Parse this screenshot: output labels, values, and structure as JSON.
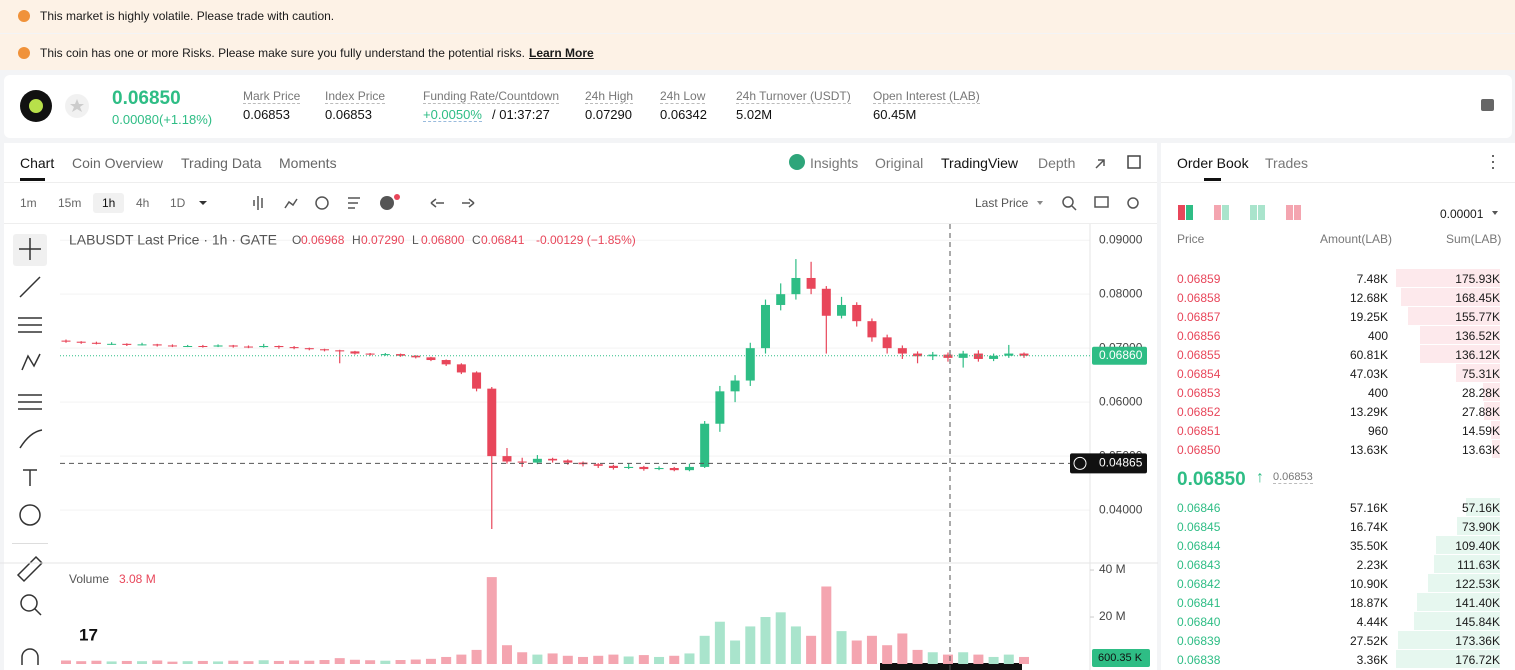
{
  "banners": [
    "This market is highly volatile. Please trade with caution.",
    "This coin has one or more Risks. Please make sure you fully understand the potential risks."
  ],
  "banner_link": "Learn More",
  "ticker": {
    "price": "0.06850",
    "change": "0.00080(+1.18%)",
    "stats": [
      {
        "label": "Mark Price",
        "value": "0.06853"
      },
      {
        "label": "Index Price",
        "value": "0.06853"
      },
      {
        "label": "Funding Rate/Countdown",
        "value": "+0.0050%",
        "value2": "/ 01:37:27"
      },
      {
        "label": "24h High",
        "value": "0.07290"
      },
      {
        "label": "24h Low",
        "value": "0.06342"
      },
      {
        "label": "24h Turnover (USDT)",
        "value": "5.02M"
      },
      {
        "label": "Open Interest (LAB)",
        "value": "60.45M"
      }
    ]
  },
  "tabs": [
    "Chart",
    "Coin Overview",
    "Trading Data",
    "Moments"
  ],
  "view_tabs": [
    "Insights",
    "Original",
    "TradingView",
    "Depth"
  ],
  "intervals": [
    "1m",
    "15m",
    "1h",
    "4h",
    "1D"
  ],
  "price_type": "Last Price",
  "chart_data": {
    "type": "candlestick",
    "title": "LABUSDT Last Price · 1h · GATE",
    "ohlc_legend": [
      {
        "label": "O",
        "value": "0.06968"
      },
      {
        "label": "H",
        "value": "0.07290"
      },
      {
        "label": "L",
        "value": "0.06800"
      },
      {
        "label": "C",
        "value": "0.06841"
      }
    ],
    "legend_change": "-0.00129 (−1.85%)",
    "open": [
      0.0714,
      0.0712,
      0.071,
      0.0708,
      0.0708,
      0.0706,
      0.0707,
      0.0705,
      0.0704,
      0.0704,
      0.0703,
      0.0705,
      0.0703,
      0.0702,
      0.0704,
      0.0702,
      0.07,
      0.0698,
      0.0696,
      0.0694,
      0.069,
      0.0688,
      0.0689,
      0.0686,
      0.0683,
      0.0678,
      0.067,
      0.0655,
      0.0625,
      0.05,
      0.049,
      0.0488,
      0.0495,
      0.0492,
      0.0488,
      0.0485,
      0.0482,
      0.0478,
      0.048,
      0.0476,
      0.0478,
      0.0474,
      0.048,
      0.056,
      0.062,
      0.064,
      0.07,
      0.078,
      0.08,
      0.083,
      0.081,
      0.076,
      0.078,
      0.075,
      0.072,
      0.07,
      0.069,
      0.0685,
      0.0688,
      0.0682,
      0.069,
      0.068,
      0.0686,
      0.069
    ],
    "high": [
      0.0716,
      0.0713,
      0.0712,
      0.0711,
      0.0709,
      0.071,
      0.0708,
      0.0707,
      0.0706,
      0.0706,
      0.0707,
      0.0706,
      0.0705,
      0.0708,
      0.0705,
      0.0704,
      0.0701,
      0.0699,
      0.0697,
      0.0695,
      0.0691,
      0.0691,
      0.069,
      0.0687,
      0.0684,
      0.0679,
      0.0672,
      0.0657,
      0.0628,
      0.0515,
      0.0497,
      0.0502,
      0.0497,
      0.0494,
      0.049,
      0.0487,
      0.0484,
      0.0486,
      0.0482,
      0.0481,
      0.048,
      0.0486,
      0.0565,
      0.063,
      0.065,
      0.071,
      0.079,
      0.082,
      0.0865,
      0.086,
      0.0815,
      0.0795,
      0.0785,
      0.0755,
      0.0725,
      0.0705,
      0.0694,
      0.0693,
      0.0692,
      0.0695,
      0.0696,
      0.069,
      0.0706,
      0.0692
    ],
    "low": [
      0.071,
      0.0708,
      0.0707,
      0.0706,
      0.0704,
      0.0705,
      0.0703,
      0.0702,
      0.0702,
      0.0701,
      0.0702,
      0.0701,
      0.07,
      0.0701,
      0.0699,
      0.0698,
      0.0696,
      0.0694,
      0.0672,
      0.0688,
      0.0686,
      0.0686,
      0.0684,
      0.0681,
      0.0676,
      0.0667,
      0.0652,
      0.062,
      0.0365,
      0.0486,
      0.048,
      0.0485,
      0.0488,
      0.0484,
      0.0481,
      0.0478,
      0.0475,
      0.0476,
      0.0473,
      0.0474,
      0.0472,
      0.0472,
      0.0478,
      0.0545,
      0.06,
      0.063,
      0.069,
      0.077,
      0.079,
      0.08,
      0.069,
      0.0755,
      0.074,
      0.0712,
      0.069,
      0.068,
      0.0672,
      0.0678,
      0.0675,
      0.0664,
      0.0675,
      0.0676,
      0.0682,
      0.0682
    ],
    "close": [
      0.0712,
      0.071,
      0.0708,
      0.0708,
      0.0706,
      0.0707,
      0.0705,
      0.0704,
      0.0704,
      0.0703,
      0.0705,
      0.0703,
      0.0702,
      0.0704,
      0.0702,
      0.07,
      0.0698,
      0.0696,
      0.0694,
      0.069,
      0.0688,
      0.0689,
      0.0686,
      0.0683,
      0.0678,
      0.067,
      0.0655,
      0.0625,
      0.05,
      0.049,
      0.0488,
      0.0495,
      0.0492,
      0.0488,
      0.0485,
      0.0482,
      0.0478,
      0.048,
      0.0476,
      0.0478,
      0.0474,
      0.048,
      0.056,
      0.062,
      0.064,
      0.07,
      0.078,
      0.08,
      0.083,
      0.081,
      0.076,
      0.078,
      0.075,
      0.072,
      0.07,
      0.069,
      0.0685,
      0.0688,
      0.0682,
      0.069,
      0.068,
      0.0686,
      0.069,
      0.0686
    ],
    "ylim": [
      0.0302,
      0.093
    ],
    "yticks": [
      {
        "value": 0.09,
        "label": "0.09000"
      },
      {
        "value": 0.08,
        "label": "0.08000"
      },
      {
        "value": 0.07,
        "label": "0.07000"
      },
      {
        "value": 0.06,
        "label": "0.06000"
      },
      {
        "value": 0.05,
        "label": "0.05000"
      },
      {
        "value": 0.04,
        "label": "0.04000"
      }
    ],
    "last_price": {
      "value": 0.0686,
      "label": "0.06860"
    },
    "crosshair": {
      "value": 0.04865,
      "label": "0.04865"
    },
    "volume": {
      "title": "Volume",
      "value_label": "3.08 M",
      "values": [
        1500000,
        1200000,
        1400000,
        1100000,
        1300000,
        1200000,
        1500000,
        1000000,
        1200000,
        1300000,
        1100000,
        1400000,
        1200000,
        1600000,
        1300000,
        1500000,
        1400000,
        1700000,
        2500000,
        1800000,
        1600000,
        1400000,
        1700000,
        1900000,
        2200000,
        3000000,
        4000000,
        6000000,
        37000000,
        8000000,
        5000000,
        4000000,
        4500000,
        3500000,
        3000000,
        3500000,
        4000000,
        3200000,
        3800000,
        3000000,
        3500000,
        4500000,
        12000000,
        18000000,
        10000000,
        16000000,
        20000000,
        22000000,
        16000000,
        12000000,
        33000000,
        14000000,
        10000000,
        12000000,
        8000000,
        13000000,
        6000000,
        5000000,
        4000000,
        5000000,
        4000000,
        3000000,
        4000000,
        3000000
      ],
      "ylim": [
        0,
        43000000
      ],
      "yticks": [
        {
          "value": 20000000,
          "label": "20 M"
        },
        {
          "value": 40000000,
          "label": "40 M"
        }
      ],
      "last_label": "600.35 K"
    }
  },
  "order_book": {
    "tabs": [
      "Order Book",
      "Trades"
    ],
    "precision": "0.00001",
    "headers": [
      "Price",
      "Amount(LAB)",
      "Sum(LAB)"
    ],
    "asks": [
      {
        "price": "0.06859",
        "amount": "7.48K",
        "sum": 175930,
        "sum_label": "175.93K"
      },
      {
        "price": "0.06858",
        "amount": "12.68K",
        "sum": 168450,
        "sum_label": "168.45K"
      },
      {
        "price": "0.06857",
        "amount": "19.25K",
        "sum": 155770,
        "sum_label": "155.77K"
      },
      {
        "price": "0.06856",
        "amount": "400",
        "sum": 136520,
        "sum_label": "136.52K"
      },
      {
        "price": "0.06855",
        "amount": "60.81K",
        "sum": 136120,
        "sum_label": "136.12K"
      },
      {
        "price": "0.06854",
        "amount": "47.03K",
        "sum": 75310,
        "sum_label": "75.31K"
      },
      {
        "price": "0.06853",
        "amount": "400",
        "sum": 28280,
        "sum_label": "28.28K"
      },
      {
        "price": "0.06852",
        "amount": "13.29K",
        "sum": 27880,
        "sum_label": "27.88K"
      },
      {
        "price": "0.06851",
        "amount": "960",
        "sum": 14590,
        "sum_label": "14.59K"
      },
      {
        "price": "0.06850",
        "amount": "13.63K",
        "sum": 13630,
        "sum_label": "13.63K"
      }
    ],
    "mid_price": "0.06850",
    "mid_mark": "0.06853",
    "bids": [
      {
        "price": "0.06846",
        "amount": "57.16K",
        "sum": 57160,
        "sum_label": "57.16K"
      },
      {
        "price": "0.06845",
        "amount": "16.74K",
        "sum": 73900,
        "sum_label": "73.90K"
      },
      {
        "price": "0.06844",
        "amount": "35.50K",
        "sum": 109400,
        "sum_label": "109.40K"
      },
      {
        "price": "0.06843",
        "amount": "2.23K",
        "sum": 111630,
        "sum_label": "111.63K"
      },
      {
        "price": "0.06842",
        "amount": "10.90K",
        "sum": 122530,
        "sum_label": "122.53K"
      },
      {
        "price": "0.06841",
        "amount": "18.87K",
        "sum": 141400,
        "sum_label": "141.40K"
      },
      {
        "price": "0.06840",
        "amount": "4.44K",
        "sum": 145840,
        "sum_label": "145.84K"
      },
      {
        "price": "0.06839",
        "amount": "27.52K",
        "sum": 173360,
        "sum_label": "173.36K"
      },
      {
        "price": "0.06838",
        "amount": "3.36K",
        "sum": 176720,
        "sum_label": "176.72K"
      }
    ]
  }
}
